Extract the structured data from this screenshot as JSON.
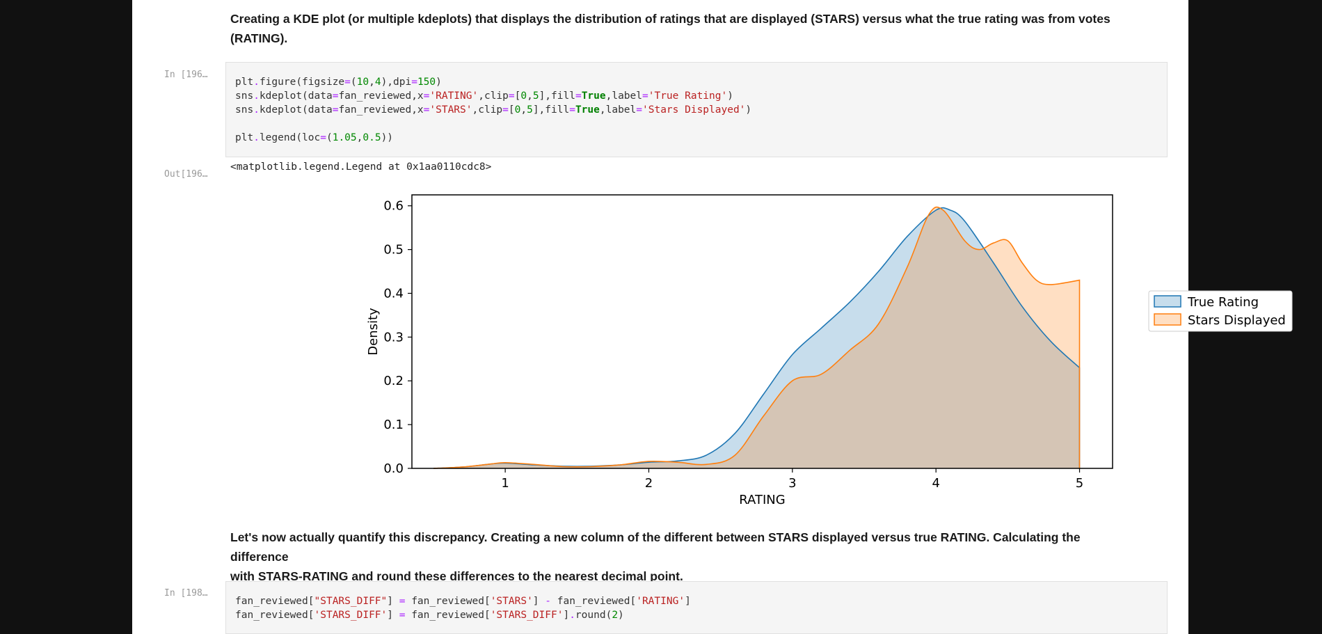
{
  "markdown_1": {
    "line1": "Creating a KDE plot (or multiple kdeplots) that displays the distribution of ratings that are displayed (STARS) versus what the true rating was from votes",
    "line2": "(RATING)."
  },
  "cell_196": {
    "prompt_in": "In [196…",
    "prompt_out": "Out[196…",
    "output_text": "<matplotlib.legend.Legend at 0x1aa0110cdc8>"
  },
  "markdown_2": {
    "line1": "Let's now actually quantify this discrepancy. Creating a new column of the different between STARS displayed versus true RATING. Calculating the difference",
    "line2": "with STARS-RATING and round these differences to the nearest decimal point."
  },
  "cell_198": {
    "prompt_in": "In [198…"
  },
  "colors": {
    "true_rating": "#1f77b4",
    "stars_displayed": "#ff7f0e"
  },
  "chart_data": {
    "type": "area",
    "title": "",
    "xlabel": "RATING",
    "ylabel": "Density",
    "xlim": [
      0.35,
      5.23
    ],
    "ylim": [
      0,
      0.625
    ],
    "xticks": [
      1,
      2,
      3,
      4,
      5
    ],
    "yticks": [
      0.0,
      0.1,
      0.2,
      0.3,
      0.4,
      0.5,
      0.6
    ],
    "grid": false,
    "legend_position": "outside right",
    "series": [
      {
        "name": "True Rating",
        "color": "#1f77b4",
        "x": [
          0.5,
          0.7,
          0.9,
          1.0,
          1.2,
          1.4,
          1.6,
          1.8,
          2.0,
          2.2,
          2.4,
          2.6,
          2.8,
          3.0,
          3.2,
          3.4,
          3.6,
          3.8,
          4.0,
          4.1,
          4.2,
          4.4,
          4.6,
          4.8,
          5.0
        ],
        "y": [
          0.0,
          0.003,
          0.01,
          0.012,
          0.008,
          0.005,
          0.005,
          0.008,
          0.014,
          0.017,
          0.03,
          0.08,
          0.17,
          0.26,
          0.32,
          0.38,
          0.45,
          0.53,
          0.59,
          0.59,
          0.565,
          0.47,
          0.37,
          0.29,
          0.23
        ]
      },
      {
        "name": "Stars Displayed",
        "color": "#ff7f0e",
        "x": [
          0.5,
          0.7,
          0.9,
          1.0,
          1.2,
          1.4,
          1.6,
          1.8,
          2.0,
          2.2,
          2.4,
          2.6,
          2.8,
          3.0,
          3.2,
          3.4,
          3.6,
          3.8,
          3.95,
          4.05,
          4.2,
          4.3,
          4.4,
          4.5,
          4.6,
          4.7,
          4.8,
          5.0
        ],
        "y": [
          0.0,
          0.003,
          0.01,
          0.013,
          0.009,
          0.004,
          0.004,
          0.008,
          0.016,
          0.014,
          0.009,
          0.03,
          0.12,
          0.2,
          0.215,
          0.27,
          0.33,
          0.46,
          0.58,
          0.59,
          0.52,
          0.5,
          0.515,
          0.52,
          0.47,
          0.43,
          0.42,
          0.43
        ]
      }
    ]
  }
}
